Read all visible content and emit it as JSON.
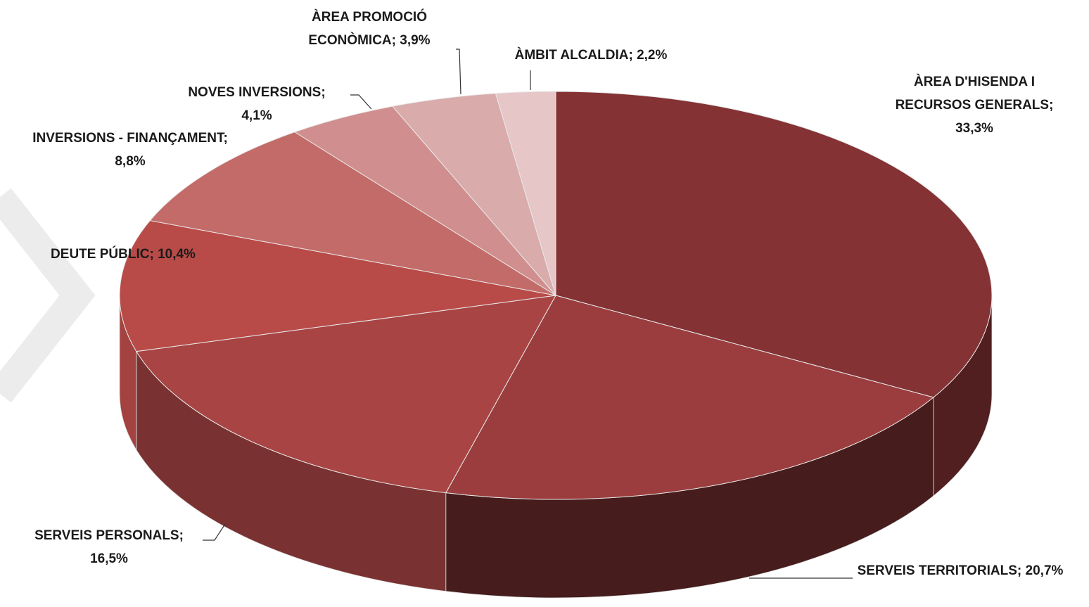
{
  "chart_data": {
    "type": "pie3d",
    "categories": [
      "ÀREA D'HISENDA I RECURSOS GENERALS;",
      "SERVEIS TERRITORIALS;",
      "SERVEIS PERSONALS;",
      "DEUTE PÚBLIC;",
      "INVERSIONS - FINANÇAMENT;",
      "NOVES INVERSIONS;",
      "ÀREA PROMOCIÓ ECONÒMICA;",
      "ÀMBIT ALCALDIA;"
    ],
    "values": [
      33.3,
      20.7,
      16.5,
      10.4,
      8.8,
      4.1,
      3.9,
      2.2
    ],
    "value_labels": [
      "33,3%",
      "20,7%",
      "16,5%",
      "10,4%",
      "8,8%",
      "4,1%",
      "3,9%",
      "2,2%"
    ],
    "colors": [
      "#843234",
      "#9b3d3e",
      "#a84443",
      "#b84b48",
      "#c36b68",
      "#d08f8e",
      "#d9abab",
      "#e6c6c7"
    ]
  }
}
